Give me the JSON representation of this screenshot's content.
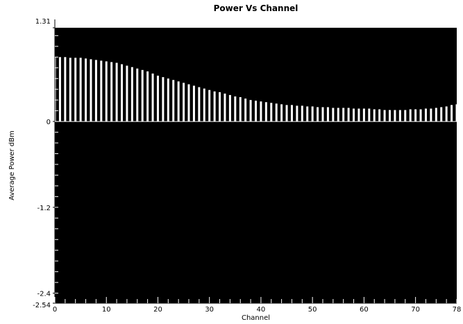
{
  "chart_data": {
    "type": "bar",
    "title": "Power Vs Channel",
    "xlabel": "Channel",
    "ylabel": "Average Power  dBm",
    "xlim": [
      0,
      78
    ],
    "ylim": [
      -2.54,
      1.31
    ],
    "x_ticks": [
      0,
      10,
      20,
      30,
      40,
      50,
      60,
      70,
      78
    ],
    "y_ticks": [
      1.31,
      0,
      -1.2,
      -2.4,
      -2.54
    ],
    "y_tick_labels": [
      "1.31",
      "0",
      "-1.2",
      "-2.4",
      "-2.54"
    ],
    "grid": false,
    "legend": "none",
    "colors": {
      "plot_background": "#000000",
      "bars": "#ffffff",
      "axis": "#000000"
    },
    "channels": [
      0,
      1,
      2,
      3,
      4,
      5,
      6,
      7,
      8,
      9,
      10,
      11,
      12,
      13,
      14,
      15,
      16,
      17,
      18,
      19,
      20,
      21,
      22,
      23,
      24,
      25,
      26,
      27,
      28,
      29,
      30,
      31,
      32,
      33,
      34,
      35,
      36,
      37,
      38,
      39,
      40,
      41,
      42,
      43,
      44,
      45,
      46,
      47,
      48,
      49,
      50,
      51,
      52,
      53,
      54,
      55,
      56,
      57,
      58,
      59,
      60,
      61,
      62,
      63,
      64,
      65,
      66,
      67,
      68,
      69,
      70,
      71,
      72,
      73,
      74,
      75,
      76,
      77,
      78
    ],
    "values": [
      0.9,
      0.9,
      0.9,
      0.89,
      0.89,
      0.89,
      0.88,
      0.87,
      0.86,
      0.85,
      0.84,
      0.83,
      0.82,
      0.8,
      0.78,
      0.76,
      0.74,
      0.72,
      0.7,
      0.67,
      0.64,
      0.62,
      0.6,
      0.58,
      0.56,
      0.54,
      0.52,
      0.5,
      0.48,
      0.46,
      0.44,
      0.42,
      0.41,
      0.39,
      0.37,
      0.35,
      0.34,
      0.32,
      0.3,
      0.29,
      0.28,
      0.27,
      0.26,
      0.25,
      0.24,
      0.23,
      0.23,
      0.22,
      0.22,
      0.21,
      0.21,
      0.2,
      0.2,
      0.2,
      0.19,
      0.19,
      0.19,
      0.19,
      0.18,
      0.18,
      0.18,
      0.18,
      0.17,
      0.17,
      0.16,
      0.16,
      0.16,
      0.16,
      0.16,
      0.17,
      0.17,
      0.17,
      0.18,
      0.18,
      0.19,
      0.2,
      0.21,
      0.23,
      0.24
    ]
  }
}
